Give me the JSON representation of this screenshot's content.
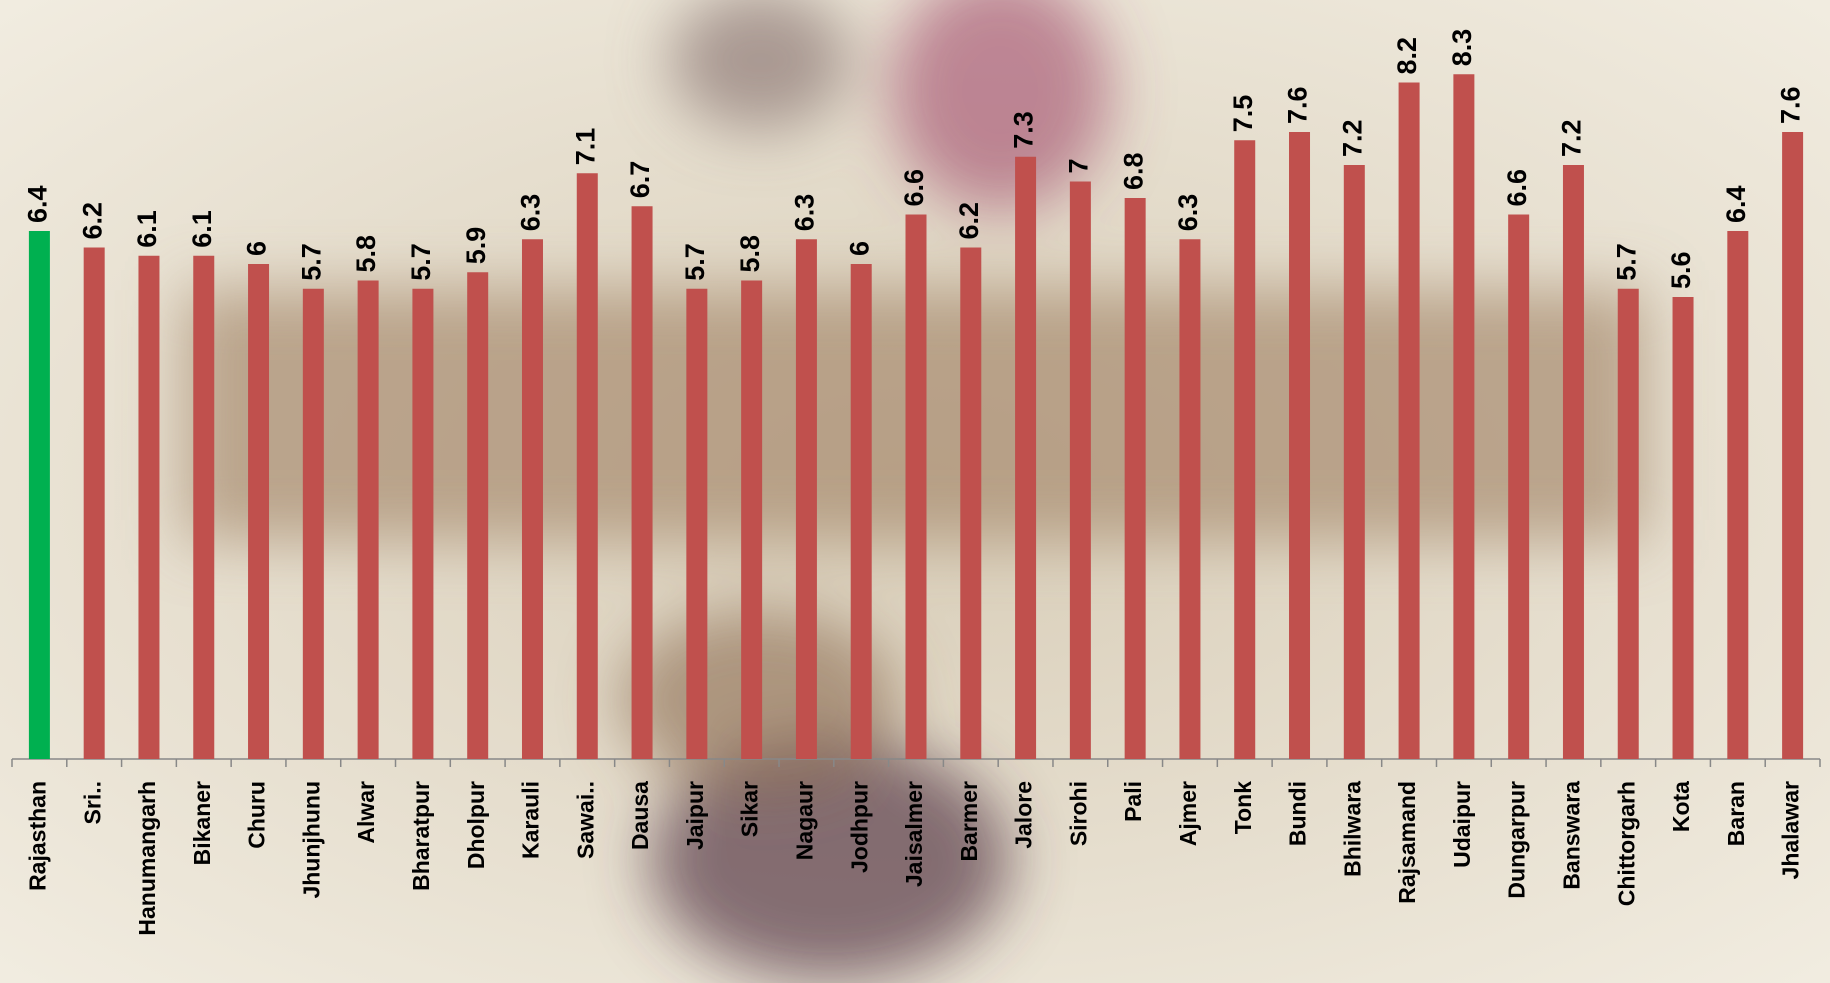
{
  "chart_data": {
    "type": "bar",
    "categories": [
      "Rajasthan",
      "Sri..",
      "Hanumangarh",
      "Bikaner",
      "Churu",
      "Jhunjhunu",
      "Alwar",
      "Bharatpur",
      "Dholpur",
      "Karauli",
      "Sawai..",
      "Dausa",
      "Jaipur",
      "Sikar",
      "Nagaur",
      "Jodhpur",
      "Jaisalmer",
      "Barmer",
      "Jalore",
      "Sirohi",
      "Pali",
      "Ajmer",
      "Tonk",
      "Bundi",
      "Bhilwara",
      "Rajsamand",
      "Udaipur",
      "Dungarpur",
      "Banswara",
      "Chittorgarh",
      "Kota",
      "Baran",
      "Jhalawar"
    ],
    "values": [
      6.4,
      6.2,
      6.1,
      6.1,
      6,
      5.7,
      5.8,
      5.7,
      5.9,
      6.3,
      7.1,
      6.7,
      5.7,
      5.8,
      6.3,
      6,
      6.6,
      6.2,
      7.3,
      7,
      6.8,
      6.3,
      7.5,
      7.6,
      7.2,
      8.2,
      8.3,
      6.6,
      7.2,
      5.7,
      5.6,
      6.4,
      7.6
    ],
    "colors": [
      "#00b050",
      "#c0504d",
      "#c0504d",
      "#c0504d",
      "#c0504d",
      "#c0504d",
      "#c0504d",
      "#c0504d",
      "#c0504d",
      "#c0504d",
      "#c0504d",
      "#c0504d",
      "#c0504d",
      "#c0504d",
      "#c0504d",
      "#c0504d",
      "#c0504d",
      "#c0504d",
      "#c0504d",
      "#c0504d",
      "#c0504d",
      "#c0504d",
      "#c0504d",
      "#c0504d",
      "#c0504d",
      "#c0504d",
      "#c0504d",
      "#c0504d",
      "#c0504d",
      "#c0504d",
      "#c0504d",
      "#c0504d",
      "#c0504d"
    ],
    "ylim": [
      0,
      9.2
    ],
    "grid": false
  }
}
